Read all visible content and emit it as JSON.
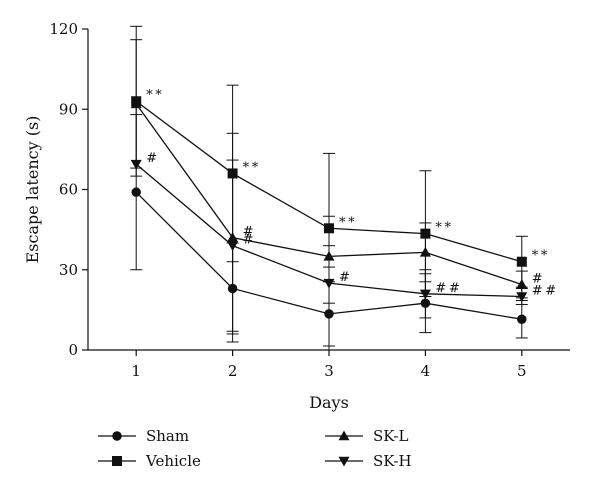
{
  "chart_data": {
    "type": "line",
    "title": "",
    "xlabel": "Days",
    "ylabel": "Escape latency (s)",
    "x": [
      1,
      2,
      3,
      4,
      5
    ],
    "xlim": [
      0.5,
      5.5
    ],
    "ylim": [
      0,
      120
    ],
    "yticks": [
      0,
      30,
      60,
      90,
      120
    ],
    "grid": false,
    "legend_position": "bottom",
    "series": [
      {
        "name": "Sham",
        "marker": "circle",
        "values": [
          59,
          23,
          13.5,
          17.5,
          11.5
        ],
        "error": [
          29,
          17,
          12,
          11,
          7
        ],
        "annotations": [
          "",
          "",
          "",
          "",
          ""
        ]
      },
      {
        "name": "Vehicle",
        "marker": "square",
        "values": [
          93,
          66,
          45.5,
          43.5,
          33
        ],
        "error": [
          28,
          33,
          28,
          23.5,
          9.5
        ],
        "annotations": [
          "**",
          "**",
          "**",
          "**",
          "**"
        ]
      },
      {
        "name": "SK-L",
        "marker": "triangle-up",
        "values": [
          92,
          42,
          35,
          36.5,
          24.5
        ],
        "error": [
          24,
          39,
          4,
          11,
          5
        ],
        "annotations": [
          "",
          "#",
          "",
          "",
          "#"
        ]
      },
      {
        "name": "SK-H",
        "marker": "triangle-down",
        "values": [
          69.5,
          39,
          25,
          21,
          20
        ],
        "error": [
          0,
          32,
          25,
          9,
          3
        ],
        "annotations": [
          "#",
          "#",
          "#",
          "##",
          "##"
        ]
      }
    ]
  }
}
